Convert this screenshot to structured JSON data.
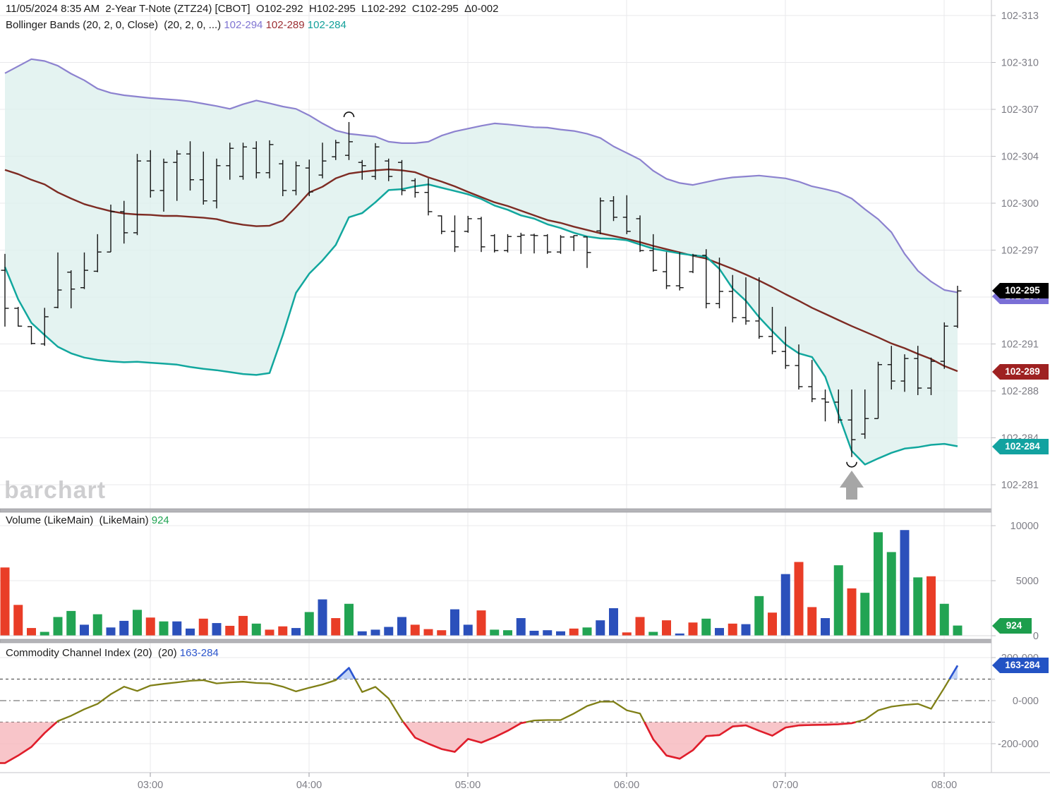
{
  "header": {
    "title": "11/05/2024 8:35 AM  2-Year T-Note (ZTZ24) [CBOT]  O102-292  H102-295  L102-292  C102-295  Δ0-002",
    "bb_label": "Bollinger Bands (20, 2, 0, Close)  (20, 2, 0, ...) ",
    "bb_upper_value": "102-294",
    "bb_mid_value": "102-289",
    "bb_lower_value": "102-284"
  },
  "volume_panel": {
    "title": "Volume (LikeMain)  (LikeMain) ",
    "value": "924"
  },
  "cci_panel": {
    "title": "Commodity Channel Index (20)  (20) ",
    "value": "163-284"
  },
  "watermark": "barchart",
  "badges": {
    "last_price": "102-295",
    "bb_upper": "102-294",
    "bb_mid": "102-289",
    "bb_lower": "102-284",
    "volume": "924",
    "cci": "163-284"
  },
  "colors": {
    "bb_upper": "#8c82cf",
    "bb_mid": "#7d2b23",
    "bb_lower": "#12a79e",
    "band_fill": "#ddf0ee",
    "bar_stroke": "#141414",
    "vol_up": "#22a453",
    "vol_down": "#e93d27",
    "vol_neutral": "#2b50bb",
    "cci_line": "#7f7f16",
    "cci_low": "#e11d2c",
    "cci_low_fill": "#f6b6bc",
    "cci_high": "#2b55d4",
    "cci_high_fill": "#b9cdf5",
    "badge_black": "#000000",
    "badge_purple": "#7a6fd6",
    "badge_maroon": "#9e2121",
    "badge_teal": "#12a2a0",
    "badge_green": "#1d9e4d",
    "badge_blue": "#2353c4",
    "grid": "#e8e8eb",
    "axis_border": "#c6c6ca",
    "divider": "#b4b4b8",
    "axis_text": "#7e7e86",
    "marker_arrow": "#a6a6a6"
  },
  "axes": {
    "price_labels": [
      [
        "102-313",
        10
      ],
      [
        "102-310",
        9
      ],
      [
        "102-307",
        8
      ],
      [
        "102-304",
        7
      ],
      [
        "102-300",
        6
      ],
      [
        "102-297",
        5
      ],
      [
        "102-294",
        4
      ],
      [
        "102-291",
        3
      ],
      [
        "102-288",
        2
      ],
      [
        "102-284",
        1
      ],
      [
        "102-281",
        0
      ]
    ],
    "volume_labels": [
      [
        "10000",
        10000
      ],
      [
        "5000",
        5000
      ],
      [
        "0",
        0
      ]
    ],
    "cci_labels": [
      [
        "200-000",
        200
      ],
      [
        "0-000",
        0
      ],
      [
        "-200-000",
        -200
      ]
    ],
    "time_labels": [
      [
        "03:00",
        213
      ],
      [
        "04:00",
        438
      ],
      [
        "05:00",
        663
      ],
      [
        "06:00",
        888
      ],
      [
        "07:00",
        1113
      ],
      [
        "08:00",
        1338
      ]
    ]
  },
  "chart_data": [
    {
      "type": "bar",
      "subtype": "ohlc-with-bollinger-bands",
      "title": "2-Year T-Note (ZTZ24) 5-minute",
      "interval_minutes": 5,
      "price_scale_note": "values are 32nds-gridline units above 102-281; one unit = one axis gridline (102-281=0 ... 102-313=10)",
      "ylim": [
        -0.55,
        10.34
      ],
      "last_close_label": "102-295",
      "ohlc": [
        [
          4.57,
          4.92,
          3.37,
          3.76
        ],
        [
          3.76,
          3.79,
          3.37,
          3.38
        ],
        [
          3.37,
          3.38,
          2.99,
          3.01
        ],
        [
          3.0,
          3.77,
          2.96,
          3.58
        ],
        [
          3.78,
          4.95,
          3.76,
          4.15
        ],
        [
          4.53,
          4.57,
          3.76,
          4.17
        ],
        [
          4.2,
          4.95,
          4.17,
          4.57
        ],
        [
          4.55,
          5.34,
          4.53,
          4.96
        ],
        [
          4.96,
          5.97,
          4.96,
          5.82
        ],
        [
          5.82,
          6.05,
          5.14,
          5.37
        ],
        [
          5.37,
          7.05,
          5.32,
          6.9
        ],
        [
          6.9,
          7.13,
          6.12,
          6.27
        ],
        [
          6.27,
          6.95,
          5.82,
          6.87
        ],
        [
          6.87,
          7.13,
          6.05,
          7.05
        ],
        [
          7.05,
          7.32,
          6.27,
          6.5
        ],
        [
          6.5,
          7.1,
          5.97,
          6.05
        ],
        [
          6.05,
          6.95,
          5.89,
          6.8
        ],
        [
          6.8,
          7.29,
          6.5,
          7.17
        ],
        [
          6.57,
          7.29,
          6.5,
          7.2
        ],
        [
          7.17,
          7.32,
          6.53,
          6.65
        ],
        [
          6.65,
          7.34,
          6.53,
          7.25
        ],
        [
          6.84,
          6.92,
          6.15,
          6.27
        ],
        [
          6.27,
          6.89,
          6.17,
          6.8
        ],
        [
          6.75,
          6.93,
          6.15,
          6.24
        ],
        [
          6.6,
          7.29,
          6.53,
          6.9
        ],
        [
          6.99,
          7.35,
          6.92,
          7.29
        ],
        [
          7.02,
          7.73,
          6.92,
          7.31
        ],
        [
          6.87,
          6.92,
          6.5,
          6.8
        ],
        [
          6.57,
          7.28,
          6.5,
          7.2
        ],
        [
          6.9,
          6.95,
          6.47,
          6.57
        ],
        [
          6.87,
          6.92,
          6.17,
          6.27
        ],
        [
          6.48,
          6.53,
          6.12,
          6.23
        ],
        [
          6.23,
          6.53,
          5.74,
          5.82
        ],
        [
          5.73,
          5.74,
          5.34,
          5.4
        ],
        [
          5.4,
          5.74,
          4.96,
          5.07
        ],
        [
          5.4,
          5.73,
          5.37,
          5.67
        ],
        [
          5.67,
          5.71,
          4.96,
          5.07
        ],
        [
          5.31,
          5.34,
          4.95,
          4.99
        ],
        [
          4.99,
          5.34,
          4.95,
          5.29
        ],
        [
          5.29,
          5.37,
          4.92,
          5.32
        ],
        [
          5.32,
          5.35,
          4.93,
          5.31
        ],
        [
          5.31,
          5.34,
          4.92,
          4.96
        ],
        [
          4.96,
          5.32,
          4.92,
          5.28
        ],
        [
          5.28,
          5.32,
          4.98,
          5.31
        ],
        [
          5.28,
          5.29,
          4.62,
          4.95
        ],
        [
          5.41,
          6.12,
          5.34,
          6.05
        ],
        [
          6.05,
          6.15,
          5.62,
          5.7
        ],
        [
          5.7,
          6.17,
          5.34,
          5.4
        ],
        [
          5.67,
          5.74,
          4.96,
          4.99
        ],
        [
          4.99,
          5.34,
          4.54,
          4.57
        ],
        [
          4.54,
          4.96,
          4.17,
          4.24
        ],
        [
          4.24,
          4.95,
          4.14,
          4.2
        ],
        [
          4.54,
          4.92,
          4.51,
          4.89
        ],
        [
          4.89,
          5.02,
          3.76,
          3.86
        ],
        [
          3.86,
          4.84,
          3.76,
          4.12
        ],
        [
          4.12,
          4.47,
          3.46,
          3.56
        ],
        [
          3.56,
          4.42,
          3.41,
          3.49
        ],
        [
          3.49,
          4.42,
          3.11,
          3.16
        ],
        [
          3.16,
          3.79,
          2.78,
          2.84
        ],
        [
          2.84,
          3.37,
          2.47,
          2.54
        ],
        [
          2.54,
          2.99,
          2.03,
          2.09
        ],
        [
          2.09,
          2.66,
          1.76,
          1.83
        ],
        [
          1.83,
          2.03,
          1.35,
          1.76
        ],
        [
          1.76,
          2.03,
          1.31,
          1.38
        ],
        [
          1.38,
          2.03,
          0.59,
          0.96
        ],
        [
          1.08,
          2.03,
          0.98,
          1.41
        ],
        [
          1.41,
          2.62,
          1.41,
          2.56
        ],
        [
          2.56,
          2.96,
          2.03,
          2.21
        ],
        [
          2.21,
          2.78,
          1.98,
          2.69
        ],
        [
          2.69,
          2.96,
          1.91,
          2.06
        ],
        [
          2.06,
          2.71,
          1.91,
          2.63
        ],
        [
          2.63,
          3.46,
          2.47,
          3.38
        ],
        [
          3.38,
          4.24,
          3.34,
          4.13
        ]
      ],
      "bb_upper": [
        8.77,
        8.92,
        9.07,
        9.03,
        8.93,
        8.76,
        8.62,
        8.44,
        8.35,
        8.3,
        8.27,
        8.24,
        8.22,
        8.2,
        8.17,
        8.12,
        8.07,
        8.01,
        8.11,
        8.19,
        8.13,
        8.06,
        8.01,
        7.87,
        7.7,
        7.55,
        7.48,
        7.45,
        7.42,
        7.31,
        7.28,
        7.28,
        7.31,
        7.44,
        7.53,
        7.59,
        7.65,
        7.7,
        7.68,
        7.65,
        7.62,
        7.61,
        7.57,
        7.54,
        7.48,
        7.39,
        7.21,
        7.07,
        6.93,
        6.69,
        6.52,
        6.43,
        6.39,
        6.45,
        6.51,
        6.55,
        6.57,
        6.59,
        6.56,
        6.53,
        6.46,
        6.36,
        6.3,
        6.23,
        6.1,
        5.87,
        5.66,
        5.38,
        4.92,
        4.56,
        4.33,
        4.15,
        4.1
      ],
      "bb_mid": [
        6.71,
        6.62,
        6.5,
        6.4,
        6.23,
        6.1,
        5.98,
        5.9,
        5.83,
        5.78,
        5.76,
        5.75,
        5.73,
        5.73,
        5.71,
        5.69,
        5.66,
        5.59,
        5.54,
        5.51,
        5.52,
        5.63,
        5.92,
        6.23,
        6.35,
        6.53,
        6.63,
        6.67,
        6.7,
        6.72,
        6.7,
        6.66,
        6.55,
        6.46,
        6.36,
        6.24,
        6.13,
        6.02,
        5.94,
        5.84,
        5.74,
        5.64,
        5.58,
        5.5,
        5.43,
        5.36,
        5.3,
        5.24,
        5.17,
        5.09,
        5.02,
        4.95,
        4.88,
        4.82,
        4.71,
        4.6,
        4.48,
        4.35,
        4.21,
        4.06,
        3.92,
        3.77,
        3.64,
        3.51,
        3.38,
        3.26,
        3.14,
        3.01,
        2.91,
        2.79,
        2.68,
        2.53,
        2.42
      ],
      "bb_lower": [
        4.64,
        3.95,
        3.45,
        3.19,
        2.94,
        2.8,
        2.71,
        2.66,
        2.63,
        2.61,
        2.62,
        2.6,
        2.58,
        2.56,
        2.51,
        2.47,
        2.44,
        2.4,
        2.36,
        2.34,
        2.38,
        3.19,
        4.09,
        4.5,
        4.78,
        5.11,
        5.7,
        5.79,
        6.02,
        6.28,
        6.3,
        6.36,
        6.4,
        6.33,
        6.26,
        6.19,
        6.09,
        5.95,
        5.86,
        5.74,
        5.67,
        5.55,
        5.47,
        5.37,
        5.29,
        5.25,
        5.24,
        5.21,
        5.12,
        5.03,
        4.98,
        4.93,
        4.89,
        4.86,
        4.6,
        4.18,
        3.92,
        3.57,
        3.27,
        2.99,
        2.8,
        2.72,
        2.3,
        1.5,
        0.72,
        0.43,
        0.56,
        0.68,
        0.77,
        0.8,
        0.85,
        0.87,
        0.82
      ],
      "markers": {
        "arc_over_bar_index": 26,
        "arc_under_bar_index": 64,
        "up_arrow_bar_index": 64
      }
    },
    {
      "type": "bar",
      "title": "Volume (LikeMain)",
      "ylabel": "Volume",
      "ylim": [
        0,
        11200
      ],
      "last_value": 924,
      "series": [
        [
          6200,
          "r"
        ],
        [
          2800,
          "r"
        ],
        [
          700,
          "r"
        ],
        [
          350,
          "g"
        ],
        [
          1700,
          "g"
        ],
        [
          2250,
          "g"
        ],
        [
          1000,
          "b"
        ],
        [
          1950,
          "g"
        ],
        [
          750,
          "b"
        ],
        [
          1350,
          "b"
        ],
        [
          2350,
          "g"
        ],
        [
          1650,
          "r"
        ],
        [
          1300,
          "g"
        ],
        [
          1300,
          "b"
        ],
        [
          650,
          "b"
        ],
        [
          1550,
          "r"
        ],
        [
          1150,
          "b"
        ],
        [
          900,
          "r"
        ],
        [
          1800,
          "r"
        ],
        [
          1100,
          "g"
        ],
        [
          550,
          "r"
        ],
        [
          850,
          "r"
        ],
        [
          700,
          "b"
        ],
        [
          2150,
          "g"
        ],
        [
          3300,
          "b"
        ],
        [
          1600,
          "r"
        ],
        [
          2900,
          "g"
        ],
        [
          400,
          "b"
        ],
        [
          550,
          "b"
        ],
        [
          800,
          "b"
        ],
        [
          1700,
          "b"
        ],
        [
          1000,
          "r"
        ],
        [
          600,
          "r"
        ],
        [
          500,
          "r"
        ],
        [
          2400,
          "b"
        ],
        [
          1000,
          "b"
        ],
        [
          2300,
          "r"
        ],
        [
          550,
          "g"
        ],
        [
          500,
          "g"
        ],
        [
          1600,
          "b"
        ],
        [
          450,
          "b"
        ],
        [
          500,
          "b"
        ],
        [
          400,
          "b"
        ],
        [
          650,
          "r"
        ],
        [
          750,
          "g"
        ],
        [
          1400,
          "b"
        ],
        [
          2500,
          "b"
        ],
        [
          300,
          "r"
        ],
        [
          1700,
          "r"
        ],
        [
          350,
          "g"
        ],
        [
          1400,
          "r"
        ],
        [
          200,
          "b"
        ],
        [
          1200,
          "r"
        ],
        [
          1550,
          "g"
        ],
        [
          700,
          "b"
        ],
        [
          1100,
          "r"
        ],
        [
          1050,
          "b"
        ],
        [
          3600,
          "g"
        ],
        [
          2100,
          "r"
        ],
        [
          5600,
          "b"
        ],
        [
          6700,
          "r"
        ],
        [
          2600,
          "r"
        ],
        [
          1600,
          "b"
        ],
        [
          6400,
          "g"
        ],
        [
          4300,
          "r"
        ],
        [
          3900,
          "g"
        ],
        [
          9400,
          "g"
        ],
        [
          7600,
          "g"
        ],
        [
          9600,
          "b"
        ],
        [
          5300,
          "g"
        ],
        [
          5400,
          "r"
        ],
        [
          2900,
          "g"
        ],
        [
          924,
          "g"
        ]
      ]
    },
    {
      "type": "line",
      "title": "Commodity Channel Index (20)",
      "ylim": [
        -330,
        210
      ],
      "reference_lines": {
        "upper_dashed": 100,
        "zero_dashdot": 0,
        "lower_dashed": -100,
        "grid": [
          200,
          -200
        ]
      },
      "last_value": 163.284,
      "values": [
        -290,
        -255,
        -215,
        -150,
        -95,
        -70,
        -40,
        -15,
        30,
        65,
        45,
        70,
        78,
        85,
        92,
        95,
        80,
        85,
        88,
        82,
        80,
        65,
        43,
        60,
        75,
        95,
        152,
        40,
        64,
        10,
        -90,
        -172,
        -200,
        -225,
        -238,
        -178,
        -195,
        -170,
        -140,
        -105,
        -92,
        -90,
        -90,
        -60,
        -25,
        -5,
        -5,
        -45,
        -60,
        -180,
        -255,
        -270,
        -230,
        -165,
        -160,
        -120,
        -115,
        -140,
        -163,
        -125,
        -115,
        -113,
        -112,
        -110,
        -105,
        -88,
        -45,
        -28,
        -20,
        -15,
        -38,
        60,
        163
      ]
    }
  ]
}
